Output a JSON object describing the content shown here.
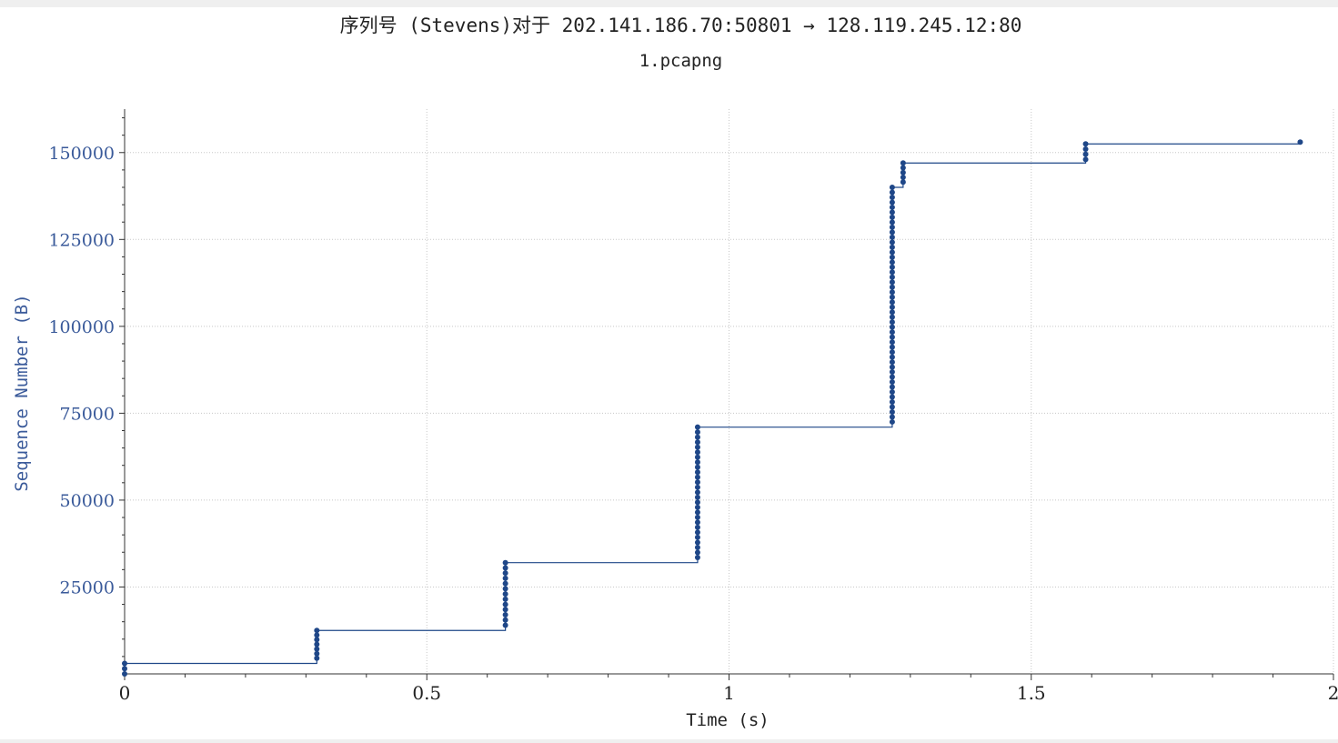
{
  "chart_data": {
    "type": "line",
    "title": "序列号 (Stevens)对于 202.141.186.70:50801 → 128.119.245.12:80",
    "subtitle": "1.pcapng",
    "xlabel": "Time (s)",
    "ylabel": "Sequence Number (B)",
    "xlim": [
      0,
      2
    ],
    "ylim": [
      0,
      162500
    ],
    "x_ticks": [
      0,
      0.5,
      1,
      1.5,
      2
    ],
    "x_tick_labels": [
      "0",
      "0.5",
      "1",
      "1.5",
      "2"
    ],
    "y_ticks": [
      25000,
      50000,
      75000,
      100000,
      125000,
      150000
    ],
    "y_tick_labels": [
      "25000",
      "50000",
      "75000",
      "100000",
      "125000",
      "150000"
    ],
    "grid": true,
    "step_line": true,
    "series": [
      {
        "color": "#1f4788",
        "bursts": [
          {
            "x": 0.0,
            "y_start": 0,
            "y_end": 3000
          },
          {
            "x": 0.318,
            "y_start": 4500,
            "y_end": 12500
          },
          {
            "x": 0.63,
            "y_start": 14000,
            "y_end": 32000
          },
          {
            "x": 0.948,
            "y_start": 33500,
            "y_end": 71000
          },
          {
            "x": 1.27,
            "y_start": 72500,
            "y_end": 140000
          },
          {
            "x": 1.288,
            "y_start": 141500,
            "y_end": 147000
          },
          {
            "x": 1.59,
            "y_start": 148000,
            "y_end": 152500
          },
          {
            "x": 1.945,
            "y_start": 153000,
            "y_end": 153000
          }
        ],
        "point_spacing": 1448
      }
    ]
  }
}
